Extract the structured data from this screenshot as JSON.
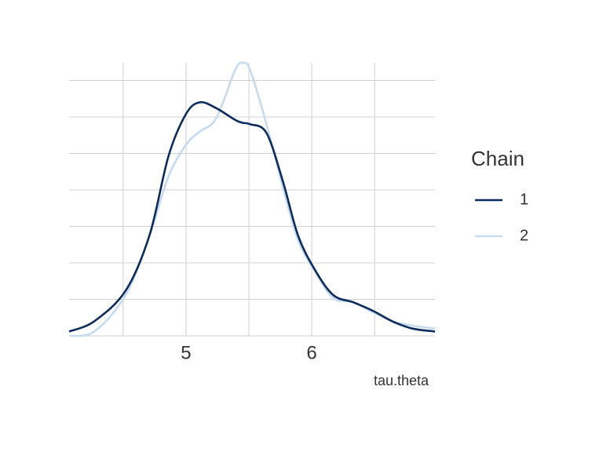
{
  "chart_data": {
    "type": "line",
    "x_label": "tau.theta",
    "x": [
      4.07,
      4.27,
      4.52,
      4.71,
      4.86,
      5.0,
      5.11,
      5.24,
      5.39,
      5.45,
      5.51,
      5.64,
      5.77,
      5.89,
      6.02,
      6.17,
      6.33,
      6.49,
      6.64,
      6.8,
      6.98
    ],
    "series": [
      {
        "name": "1",
        "color": "#0b2c5c",
        "values": [
          0.03,
          0.1,
          0.31,
          0.69,
          1.23,
          1.52,
          1.6,
          1.56,
          1.48,
          1.46,
          1.45,
          1.39,
          1.06,
          0.69,
          0.46,
          0.28,
          0.23,
          0.17,
          0.1,
          0.05,
          0.03
        ]
      },
      {
        "name": "2",
        "color": "#c6dbef",
        "values": [
          0.0,
          0.03,
          0.28,
          0.69,
          1.09,
          1.31,
          1.4,
          1.49,
          1.82,
          1.87,
          1.82,
          1.45,
          1.02,
          0.66,
          0.45,
          0.26,
          0.23,
          0.16,
          0.1,
          0.07,
          0.05
        ]
      }
    ],
    "xlim": [
      4.07,
      6.98
    ],
    "xticks": [
      5,
      6
    ],
    "x_minor_grid": [
      4.5,
      5.5,
      6.5
    ],
    "ylim": [
      0,
      1.9
    ],
    "y_grid": [
      0.25,
      0.5,
      0.75,
      1.0,
      1.25,
      1.5,
      1.75
    ],
    "legend_title": "Chain",
    "legend_position": "right"
  }
}
